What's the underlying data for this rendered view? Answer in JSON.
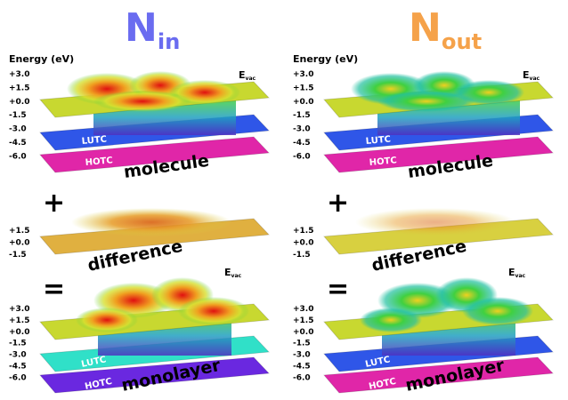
{
  "panels": [
    {
      "title": {
        "main": "N",
        "sub": "in"
      },
      "axis_label": "Energy (eV)",
      "top_ticks": [
        "+3.0",
        "+1.5",
        "+0.0",
        "-1.5",
        "-3.0",
        "-4.5",
        "-6.0"
      ],
      "evac_top": {
        "main": "E",
        "sub": "vac"
      },
      "lutc_top": "LUTC",
      "hotc_top": "HOTC",
      "molecule": "molecule",
      "plus": "+",
      "mid_ticks": [
        "+1.5",
        "+0.0",
        "-1.5"
      ],
      "difference": "difference",
      "equals": "=",
      "bottom_ticks": [
        "+3.0",
        "+1.5",
        "+0.0",
        "-1.5",
        "-3.0",
        "-4.5",
        "-6.0"
      ],
      "evac_bottom": {
        "main": "E",
        "sub": "vac"
      },
      "lutc_bottom": "LUTC",
      "hotc_bottom": "HOTC",
      "monolayer": "monolayer"
    },
    {
      "title": {
        "main": "N",
        "sub": "out"
      },
      "axis_label": "Energy (eV)",
      "top_ticks": [
        "+3.0",
        "+1.5",
        "+0.0",
        "-1.5",
        "-3.0",
        "-4.5",
        "-6.0"
      ],
      "evac_top": {
        "main": "E",
        "sub": "vac"
      },
      "lutc_top": "LUTC",
      "hotc_top": "HOTC",
      "molecule": "molecule",
      "plus": "+",
      "mid_ticks": [
        "+1.5",
        "+0.0",
        "-1.5"
      ],
      "difference": "difference",
      "equals": "=",
      "bottom_ticks": [
        "+3.0",
        "+1.5",
        "+0.0",
        "-1.5",
        "-3.0",
        "-4.5",
        "-6.0"
      ],
      "evac_bottom": {
        "main": "E",
        "sub": "vac"
      },
      "lutc_bottom": "LUTC",
      "hotc_bottom": "HOTC",
      "monolayer": "monolayer"
    }
  ]
}
